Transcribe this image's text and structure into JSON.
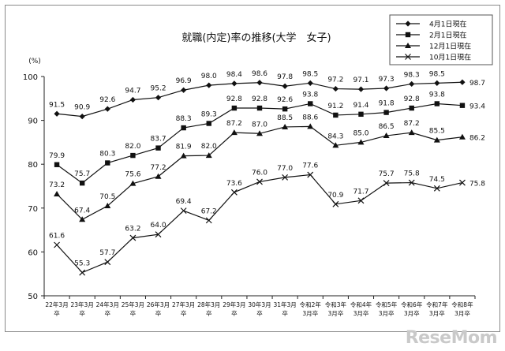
{
  "chart_data": {
    "type": "line",
    "title": "就職(内定)率の推移(大学　女子)",
    "ylabel": "(%)",
    "ylim": [
      50,
      100
    ],
    "yticks": [
      50,
      60,
      70,
      80,
      90,
      100
    ],
    "grid": false,
    "legend_position": "top-right",
    "categories": [
      [
        "22年3月",
        "卒"
      ],
      [
        "23年3月",
        "卒"
      ],
      [
        "24年3月",
        "卒"
      ],
      [
        "25年3月",
        "卒"
      ],
      [
        "26年3月",
        "卒"
      ],
      [
        "27年3月",
        "卒"
      ],
      [
        "28年3月",
        "卒"
      ],
      [
        "29年3月",
        "卒"
      ],
      [
        "30年3月",
        "卒"
      ],
      [
        "31年3月",
        "卒"
      ],
      [
        "令和2年",
        "3月卒"
      ],
      [
        "令和3年",
        "3月卒"
      ],
      [
        "令和4年",
        "3月卒"
      ],
      [
        "令和5年",
        "3月卒"
      ],
      [
        "令和6年",
        "3月卒"
      ],
      [
        "令和7年",
        "3月卒"
      ],
      [
        "令和8年",
        "3月卒"
      ]
    ],
    "series": [
      {
        "name": "4月1日現在",
        "marker": "diamond",
        "values": [
          91.5,
          90.9,
          92.6,
          94.7,
          95.2,
          96.9,
          98.0,
          98.4,
          98.6,
          97.8,
          98.5,
          97.2,
          97.1,
          97.3,
          98.3,
          98.5,
          98.7
        ]
      },
      {
        "name": "2月1日現在",
        "marker": "square",
        "values": [
          79.9,
          75.7,
          80.3,
          82.0,
          83.7,
          88.3,
          89.3,
          92.8,
          92.8,
          92.6,
          93.8,
          91.2,
          91.4,
          91.8,
          92.8,
          93.8,
          93.4
        ]
      },
      {
        "name": "12月1日現在",
        "marker": "triangle",
        "values": [
          73.2,
          67.4,
          70.5,
          75.6,
          77.2,
          81.9,
          82.0,
          87.2,
          87.0,
          88.5,
          88.6,
          84.3,
          85.0,
          86.5,
          87.2,
          85.5,
          86.2
        ]
      },
      {
        "name": "10月1日現在",
        "marker": "x",
        "values": [
          61.6,
          55.3,
          57.7,
          63.2,
          64.0,
          69.4,
          67.2,
          73.6,
          76.0,
          77.0,
          77.6,
          70.9,
          71.7,
          75.7,
          75.8,
          74.5,
          75.8
        ]
      }
    ]
  },
  "watermark": "ReseMom"
}
